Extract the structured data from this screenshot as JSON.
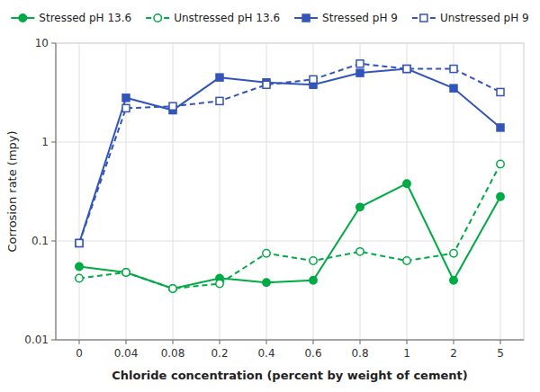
{
  "chart_data": {
    "type": "line",
    "x_label": "Chloride concentration (percent by weight of cement)",
    "y_label": "Corrosion rate (mpy)",
    "categories": [
      "0",
      "0.04",
      "0.08",
      "0.2",
      "0.4",
      "0.6",
      "0.8",
      "1",
      "2",
      "5"
    ],
    "series": [
      {
        "name": "Stressed pH 13.6",
        "color": "#00AA44",
        "marker": "circle",
        "line_style": "solid",
        "values": [
          0.055,
          0.048,
          0.033,
          0.042,
          0.038,
          0.04,
          0.22,
          0.38,
          0.04,
          0.28
        ]
      },
      {
        "name": "Unstressed pH 13.6",
        "color": "#00AA44",
        "marker": "circle-open",
        "line_style": "dashed",
        "values": [
          0.042,
          0.048,
          0.033,
          0.037,
          0.075,
          0.063,
          0.078,
          0.063,
          0.075,
          0.6
        ]
      },
      {
        "name": "Stressed pH 9",
        "color": "#3355BB",
        "marker": "square",
        "line_style": "solid",
        "values": [
          0.095,
          2.8,
          2.1,
          4.5,
          4.0,
          3.8,
          5.0,
          5.5,
          3.5,
          1.4
        ]
      },
      {
        "name": "Unstressed pH 9",
        "color": "#3355BB",
        "marker": "square-open",
        "line_style": "dashed",
        "values": [
          0.095,
          2.2,
          2.3,
          2.6,
          3.8,
          4.3,
          6.2,
          5.5,
          5.5,
          3.2
        ]
      }
    ],
    "log": "y",
    "ylim": [
      0.01,
      10
    ],
    "yticks": [
      0.01,
      0.1,
      1,
      10
    ],
    "grid": true,
    "legend": "top"
  }
}
